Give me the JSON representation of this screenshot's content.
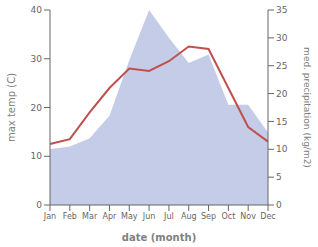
{
  "chart_data": {
    "type": "line",
    "xlabel": "date (month)",
    "ylabel": "max temp (C)",
    "y2label": "med. precipitation (kg/m2)",
    "categories": [
      "Jan",
      "Feb",
      "Mar",
      "Apr",
      "May",
      "Jun",
      "Jul",
      "Aug",
      "Sep",
      "Oct",
      "Nov",
      "Dec"
    ],
    "series": [
      {
        "type": "area",
        "axis": "y2",
        "color": "#c5cce8",
        "values": [
          10.0,
          10.5,
          12.0,
          16.0,
          26.0,
          35.0,
          30.0,
          25.5,
          27.0,
          18.0,
          18.0,
          13.0
        ]
      },
      {
        "type": "line",
        "axis": "y",
        "color": "#c0504d",
        "values": [
          12.5,
          13.5,
          19.0,
          24.0,
          28.0,
          27.5,
          29.5,
          32.5,
          32.0,
          24.0,
          16.0,
          13.0
        ]
      }
    ],
    "ylim": [
      0,
      40
    ],
    "yticks": [
      0,
      10,
      20,
      30,
      40
    ],
    "y2lim": [
      0,
      35
    ],
    "y2ticks": [
      0,
      5,
      10,
      15,
      20,
      25,
      30,
      35
    ],
    "grid": false
  }
}
